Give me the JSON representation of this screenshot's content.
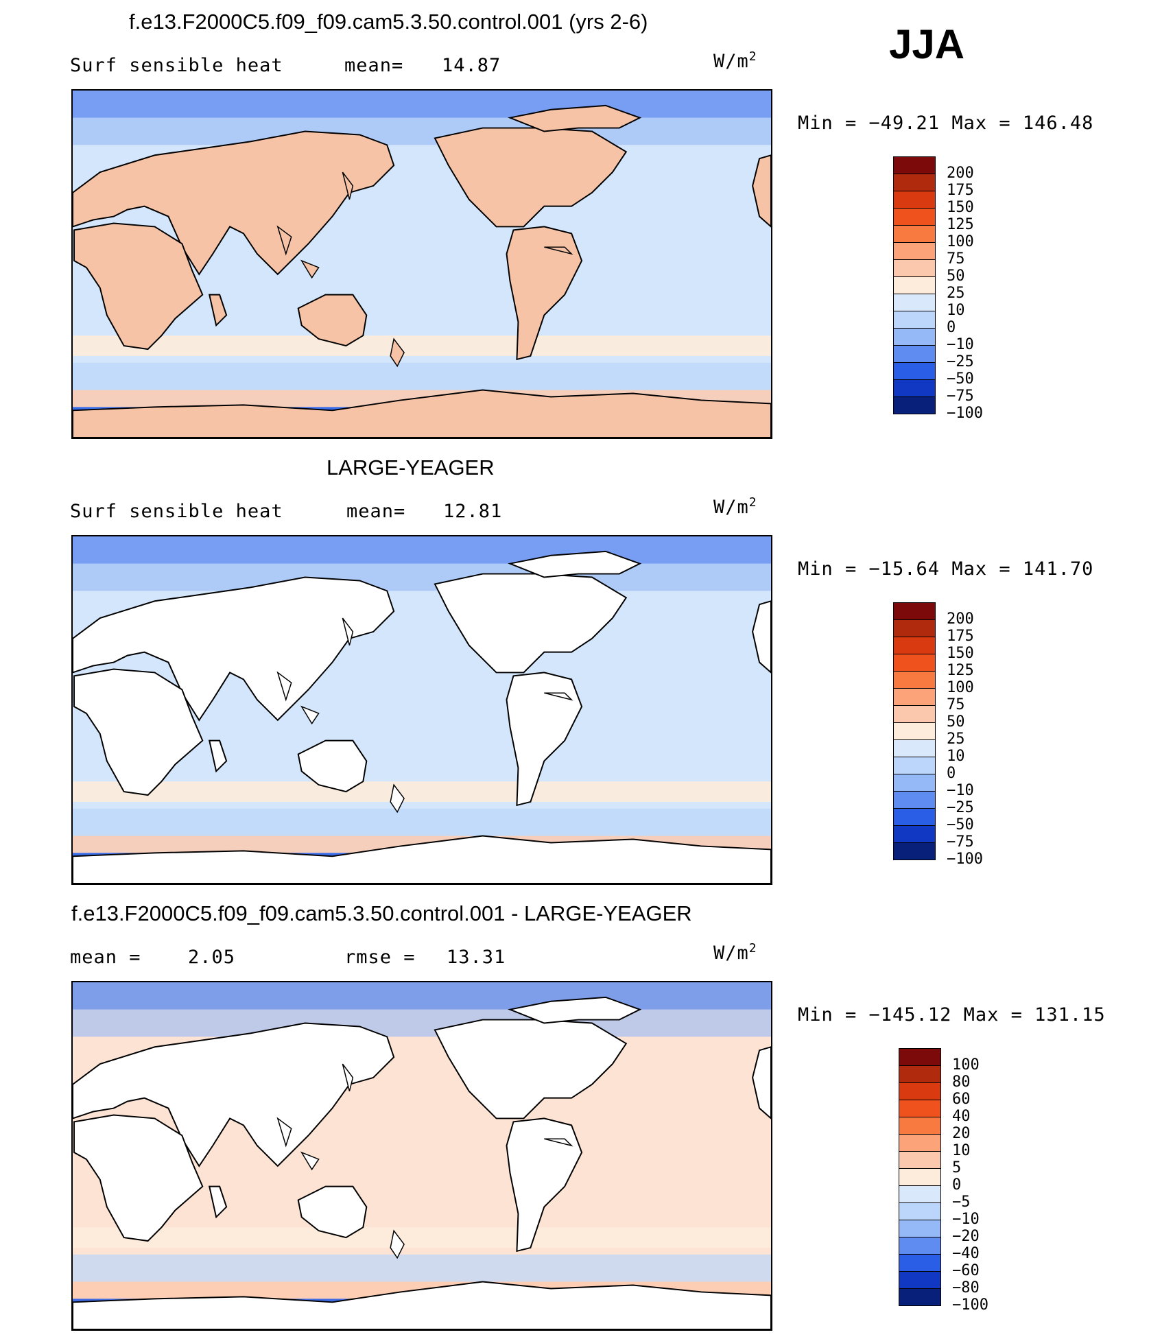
{
  "season": "JJA",
  "panels": [
    {
      "title": "f.e13.F2000C5.f09_f09.cam5.3.50.control.001 (yrs 2-6)",
      "left_label": "Surf sensible heat",
      "stat1_label": "mean=",
      "stat1_value": "14.87",
      "stat2_label": "",
      "stat2_value": "",
      "units": "W/m",
      "units_sup": "2",
      "minmax": "Min = −49.21 Max = 146.48",
      "land_color": "#f7c3a6",
      "ocean_color": "#d4e6fb"
    },
    {
      "title": "LARGE-YEAGER",
      "left_label": "Surf sensible heat",
      "stat1_label": "mean=",
      "stat1_value": "12.81",
      "stat2_label": "",
      "stat2_value": "",
      "units": "W/m",
      "units_sup": "2",
      "minmax": "Min = −15.64 Max = 141.70",
      "land_color": "#ffffff",
      "ocean_color": "#d4e6fb"
    },
    {
      "title": "f.e13.F2000C5.f09_f09.cam5.3.50.control.001 - LARGE-YEAGER",
      "left_label": "mean =",
      "stat1_label": "",
      "stat1_value": "2.05",
      "stat2_label": "rmse =",
      "stat2_value": "13.31",
      "units": "W/m",
      "units_sup": "2",
      "minmax": "Min = −145.12 Max = 131.15",
      "land_color": "#ffffff",
      "ocean_color": "#fde3d3"
    }
  ],
  "chart_data": [
    {
      "type": "heatmap",
      "title": "f.e13.F2000C5.f09_f09.cam5.3.50.control.001 (yrs 2-6)",
      "variable": "Surf sensible heat",
      "units": "W/m2",
      "mean": 14.87,
      "min": -49.21,
      "max": 146.48,
      "colorbar_levels": [
        "200",
        "175",
        "150",
        "125",
        "100",
        "75",
        "50",
        "25",
        "10",
        "0",
        "−10",
        "−25",
        "−50",
        "−75",
        "−100"
      ],
      "colorbar_colors": [
        "#7d0a0a",
        "#b02a0e",
        "#d93a10",
        "#f0521d",
        "#f97a40",
        "#fca37a",
        "#fcc8ad",
        "#fdecdc",
        "#d9e9fb",
        "#bcd5fa",
        "#94b9f6",
        "#5f8cf0",
        "#2a5ee6",
        "#1038c2",
        "#08207a"
      ]
    },
    {
      "type": "heatmap",
      "title": "LARGE-YEAGER",
      "variable": "Surf sensible heat",
      "units": "W/m2",
      "mean": 12.81,
      "min": -15.64,
      "max": 141.7,
      "colorbar_levels": [
        "200",
        "175",
        "150",
        "125",
        "100",
        "75",
        "50",
        "25",
        "10",
        "0",
        "−10",
        "−25",
        "−50",
        "−75",
        "−100"
      ],
      "colorbar_colors": [
        "#7d0a0a",
        "#b02a0e",
        "#d93a10",
        "#f0521d",
        "#f97a40",
        "#fca37a",
        "#fcc8ad",
        "#fdecdc",
        "#d9e9fb",
        "#bcd5fa",
        "#94b9f6",
        "#5f8cf0",
        "#2a5ee6",
        "#1038c2",
        "#08207a"
      ]
    },
    {
      "type": "heatmap",
      "title": "f.e13.F2000C5.f09_f09.cam5.3.50.control.001 - LARGE-YEAGER",
      "units": "W/m2",
      "mean": 2.05,
      "rmse": 13.31,
      "min": -145.12,
      "max": 131.15,
      "colorbar_levels": [
        "100",
        "80",
        "60",
        "40",
        "20",
        "10",
        "5",
        "0",
        "−5",
        "−10",
        "−20",
        "−40",
        "−60",
        "−80",
        "−100"
      ],
      "colorbar_colors": [
        "#7d0a0a",
        "#b02a0e",
        "#d93a10",
        "#f0521d",
        "#f97a40",
        "#fca37a",
        "#fcc8ad",
        "#fdecdc",
        "#d9e9fb",
        "#bcd5fa",
        "#94b9f6",
        "#5f8cf0",
        "#2a5ee6",
        "#1038c2",
        "#08207a"
      ]
    }
  ]
}
